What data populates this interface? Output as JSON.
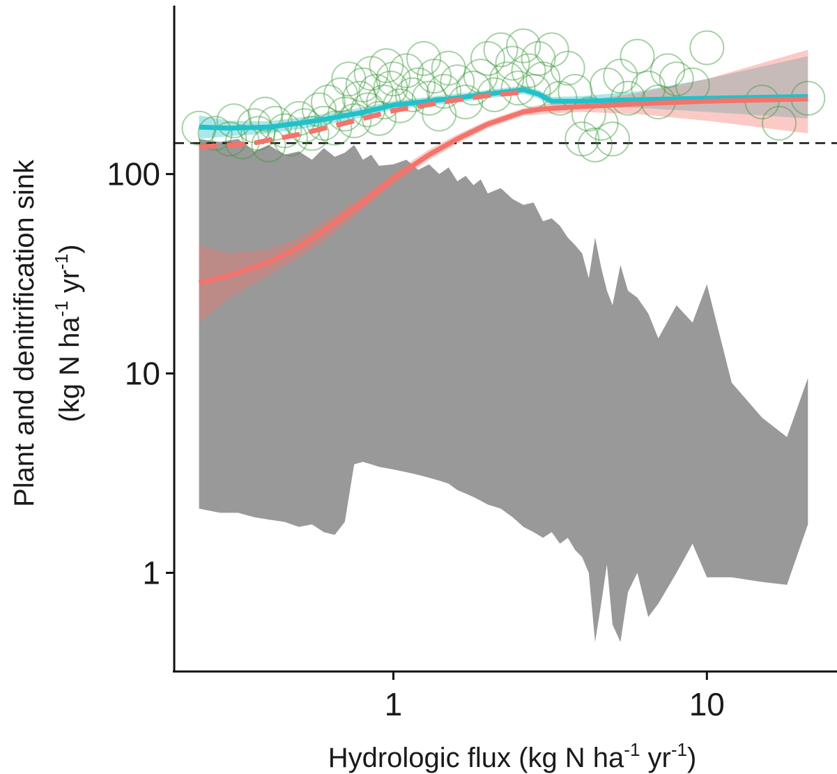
{
  "chart_data": {
    "type": "scatter",
    "title": "",
    "xlabel": {
      "text": "Hydrologic flux (kg N ha",
      "sup1": "-1",
      "mid": " yr",
      "sup2": "-1",
      "end": ")"
    },
    "ylabel": {
      "line1": "Plant and denitrification sink",
      "line2": {
        "text": "(kg N ha",
        "sup1": "-1",
        "mid": " yr",
        "sup2": "-1",
        "end": ")"
      }
    },
    "x_scale": "log10",
    "y_scale": "log10",
    "xlim": [
      0.2,
      26
    ],
    "ylim": [
      0.32,
      700
    ],
    "x_ticks": [
      {
        "value": 1,
        "label": "1"
      },
      {
        "value": 10,
        "label": "10"
      }
    ],
    "y_ticks": [
      {
        "value": 1,
        "label": "1"
      },
      {
        "value": 10,
        "label": "10"
      },
      {
        "value": 100,
        "label": "100"
      }
    ],
    "grid": false,
    "colors": {
      "envelope": "#999999",
      "points": "#3a9a3a",
      "cyan": "#22c1c9",
      "red": "#f4736b",
      "reference": "#111111"
    },
    "reference_line_y": 143,
    "gray_envelope": {
      "x": [
        0.24,
        0.28,
        0.32,
        0.36,
        0.4,
        0.45,
        0.5,
        0.55,
        0.6,
        0.65,
        0.7,
        0.75,
        0.8,
        0.85,
        0.9,
        1.0,
        1.1,
        1.2,
        1.3,
        1.4,
        1.5,
        1.6,
        1.7,
        1.8,
        1.9,
        2.0,
        2.2,
        2.4,
        2.6,
        2.8,
        3.0,
        3.2,
        3.4,
        3.6,
        3.8,
        4.0,
        4.2,
        4.4,
        4.6,
        4.8,
        5.0,
        5.3,
        5.6,
        6.0,
        6.5,
        7.0,
        8.0,
        9.0,
        10.0,
        12.0,
        15.0,
        18.0,
        21.0
      ],
      "upper": [
        150,
        145,
        150,
        130,
        140,
        125,
        130,
        118,
        135,
        122,
        128,
        140,
        118,
        125,
        110,
        112,
        118,
        105,
        112,
        100,
        108,
        92,
        98,
        88,
        94,
        80,
        85,
        75,
        70,
        72,
        58,
        60,
        55,
        48,
        44,
        40,
        30,
        48,
        34,
        26,
        22,
        35,
        26,
        24,
        20,
        15,
        22,
        18,
        28,
        9,
        6,
        4.8,
        9.5
      ],
      "lower": [
        2.1,
        2.0,
        2.0,
        1.9,
        1.85,
        1.8,
        1.7,
        1.75,
        1.6,
        1.55,
        1.8,
        3.5,
        3.6,
        3.5,
        3.4,
        3.3,
        3.2,
        3.1,
        3.0,
        2.9,
        2.8,
        2.6,
        2.5,
        2.4,
        2.3,
        2.2,
        2.1,
        1.9,
        1.7,
        1.6,
        1.5,
        1.6,
        1.4,
        1.5,
        1.3,
        1.2,
        1.0,
        0.45,
        0.7,
        1.1,
        0.55,
        0.45,
        0.8,
        1.0,
        0.6,
        0.7,
        1.0,
        1.4,
        0.95,
        0.95,
        0.9,
        0.87,
        1.75
      ]
    },
    "series": [
      {
        "kind": "points",
        "x": [
          0.24,
          0.27,
          0.3,
          0.31,
          0.33,
          0.36,
          0.37,
          0.39,
          0.4,
          0.42,
          0.45,
          0.47,
          0.5,
          0.52,
          0.55,
          0.58,
          0.6,
          0.62,
          0.65,
          0.68,
          0.7,
          0.72,
          0.75,
          0.78,
          0.8,
          0.83,
          0.85,
          0.88,
          0.9,
          0.93,
          0.95,
          0.98,
          1.0,
          1.05,
          1.1,
          1.15,
          1.2,
          1.25,
          1.3,
          1.35,
          1.4,
          1.45,
          1.5,
          1.6,
          1.7,
          1.8,
          1.9,
          2.0,
          2.1,
          2.2,
          2.3,
          2.4,
          2.5,
          2.6,
          2.7,
          2.8,
          2.9,
          3.0,
          3.2,
          3.4,
          3.6,
          3.8,
          4.0,
          4.2,
          4.4,
          4.6,
          4.8,
          5.0,
          5.3,
          5.6,
          6.0,
          6.5,
          7.0,
          7.5,
          8.0,
          9.0,
          10.0,
          15.0,
          17.0,
          21.0
        ],
        "y": [
          170,
          160,
          150,
          185,
          145,
          175,
          160,
          200,
          140,
          180,
          165,
          150,
          190,
          175,
          160,
          210,
          180,
          230,
          170,
          250,
          200,
          300,
          185,
          240,
          280,
          210,
          320,
          260,
          190,
          230,
          350,
          270,
          300,
          220,
          330,
          250,
          280,
          380,
          240,
          310,
          200,
          260,
          340,
          290,
          230,
          270,
          310,
          380,
          250,
          420,
          300,
          360,
          270,
          440,
          330,
          260,
          380,
          300,
          420,
          240,
          340,
          260,
          150,
          200,
          140,
          180,
          280,
          150,
          310,
          240,
          390,
          270,
          230,
          330,
          300,
          280,
          430,
          230,
          180,
          240
        ]
      },
      {
        "kind": "line",
        "color": "cyan",
        "dash": "solid",
        "x": [
          0.24,
          0.3,
          0.4,
          0.5,
          0.6,
          0.8,
          1.0,
          1.5,
          2.0,
          2.6,
          2.9,
          3.2,
          4.0,
          6.0,
          10.0,
          21.0
        ],
        "y": [
          172,
          170,
          172,
          180,
          188,
          204,
          222,
          238,
          252,
          265,
          252,
          232,
          232,
          236,
          240,
          245
        ],
        "band_lower": [
          150,
          155,
          160,
          168,
          176,
          193,
          211,
          226,
          240,
          252,
          240,
          220,
          218,
          215,
          205,
          190
        ],
        "band_upper": [
          197,
          185,
          184,
          192,
          200,
          216,
          233,
          250,
          264,
          278,
          264,
          244,
          246,
          260,
          300,
          390
        ]
      },
      {
        "kind": "line",
        "color": "red",
        "dash": "dashed",
        "x": [
          0.24,
          0.35,
          0.5,
          0.7,
          1.0,
          1.5,
          2.0,
          2.6
        ],
        "y": [
          137,
          142,
          158,
          180,
          208,
          232,
          248,
          258
        ]
      },
      {
        "kind": "line",
        "color": "red",
        "dash": "solid",
        "x": [
          0.24,
          0.3,
          0.4,
          0.5,
          0.6,
          0.8,
          1.0,
          1.3,
          1.6,
          2.0,
          2.6,
          3.0,
          4.0,
          6.0,
          10.0,
          21.0
        ],
        "y": [
          28.5,
          31,
          36,
          43,
          52,
          72,
          95,
          125,
          150,
          178,
          205,
          212,
          218,
          225,
          232,
          238
        ],
        "band_lower": [
          18,
          24,
          31,
          38,
          46,
          66,
          89,
          118,
          142,
          170,
          196,
          200,
          205,
          200,
          185,
          160
        ],
        "band_upper": [
          44,
          40,
          42,
          48,
          58,
          78,
          101,
          133,
          158,
          186,
          214,
          224,
          232,
          255,
          300,
          420
        ]
      }
    ]
  }
}
